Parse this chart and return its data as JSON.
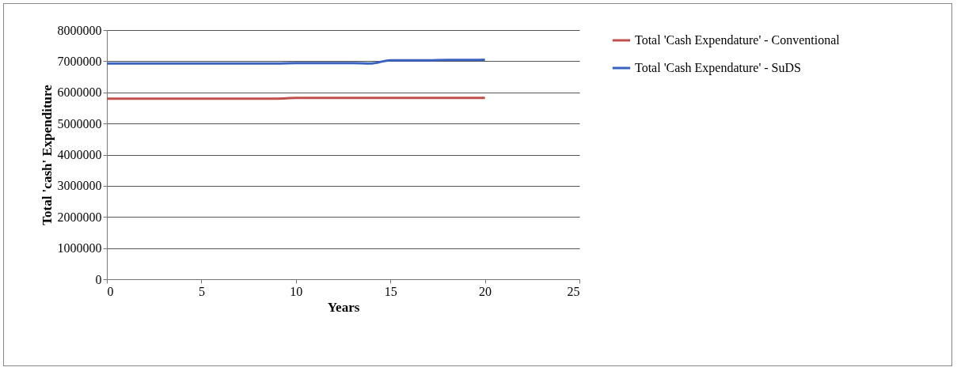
{
  "chart_data": {
    "type": "line",
    "xlabel": "Years",
    "ylabel": "Total 'cash' Expenditure",
    "x": [
      0,
      1,
      2,
      3,
      4,
      5,
      6,
      7,
      8,
      9,
      10,
      11,
      12,
      13,
      14,
      15,
      16,
      17,
      18,
      19,
      20
    ],
    "series": [
      {
        "name": "Total 'Cash Expendature' - Conventional",
        "color": "#c0504d",
        "values": [
          5800000,
          5800000,
          5800000,
          5800000,
          5800000,
          5800000,
          5800000,
          5800000,
          5800000,
          5800000,
          5820000,
          5820000,
          5820000,
          5820000,
          5820000,
          5820000,
          5820000,
          5820000,
          5820000,
          5820000,
          5820000
        ]
      },
      {
        "name": "Total 'Cash Expendature' - SuDS",
        "color": "#3a63c0",
        "values": [
          6930000,
          6930000,
          6930000,
          6930000,
          6930000,
          6930000,
          6930000,
          6930000,
          6930000,
          6930000,
          6940000,
          6940000,
          6940000,
          6940000,
          6930000,
          7030000,
          7030000,
          7030000,
          7040000,
          7040000,
          7050000
        ]
      }
    ],
    "xlim": [
      0,
      25
    ],
    "xticks": [
      0,
      5,
      10,
      15,
      20,
      25
    ],
    "ylim": [
      0,
      8000000
    ],
    "yticks": [
      0,
      1000000,
      2000000,
      3000000,
      4000000,
      5000000,
      6000000,
      7000000,
      8000000
    ],
    "grid": "y",
    "legend": "right",
    "marker": "none",
    "line_style": "solid"
  }
}
